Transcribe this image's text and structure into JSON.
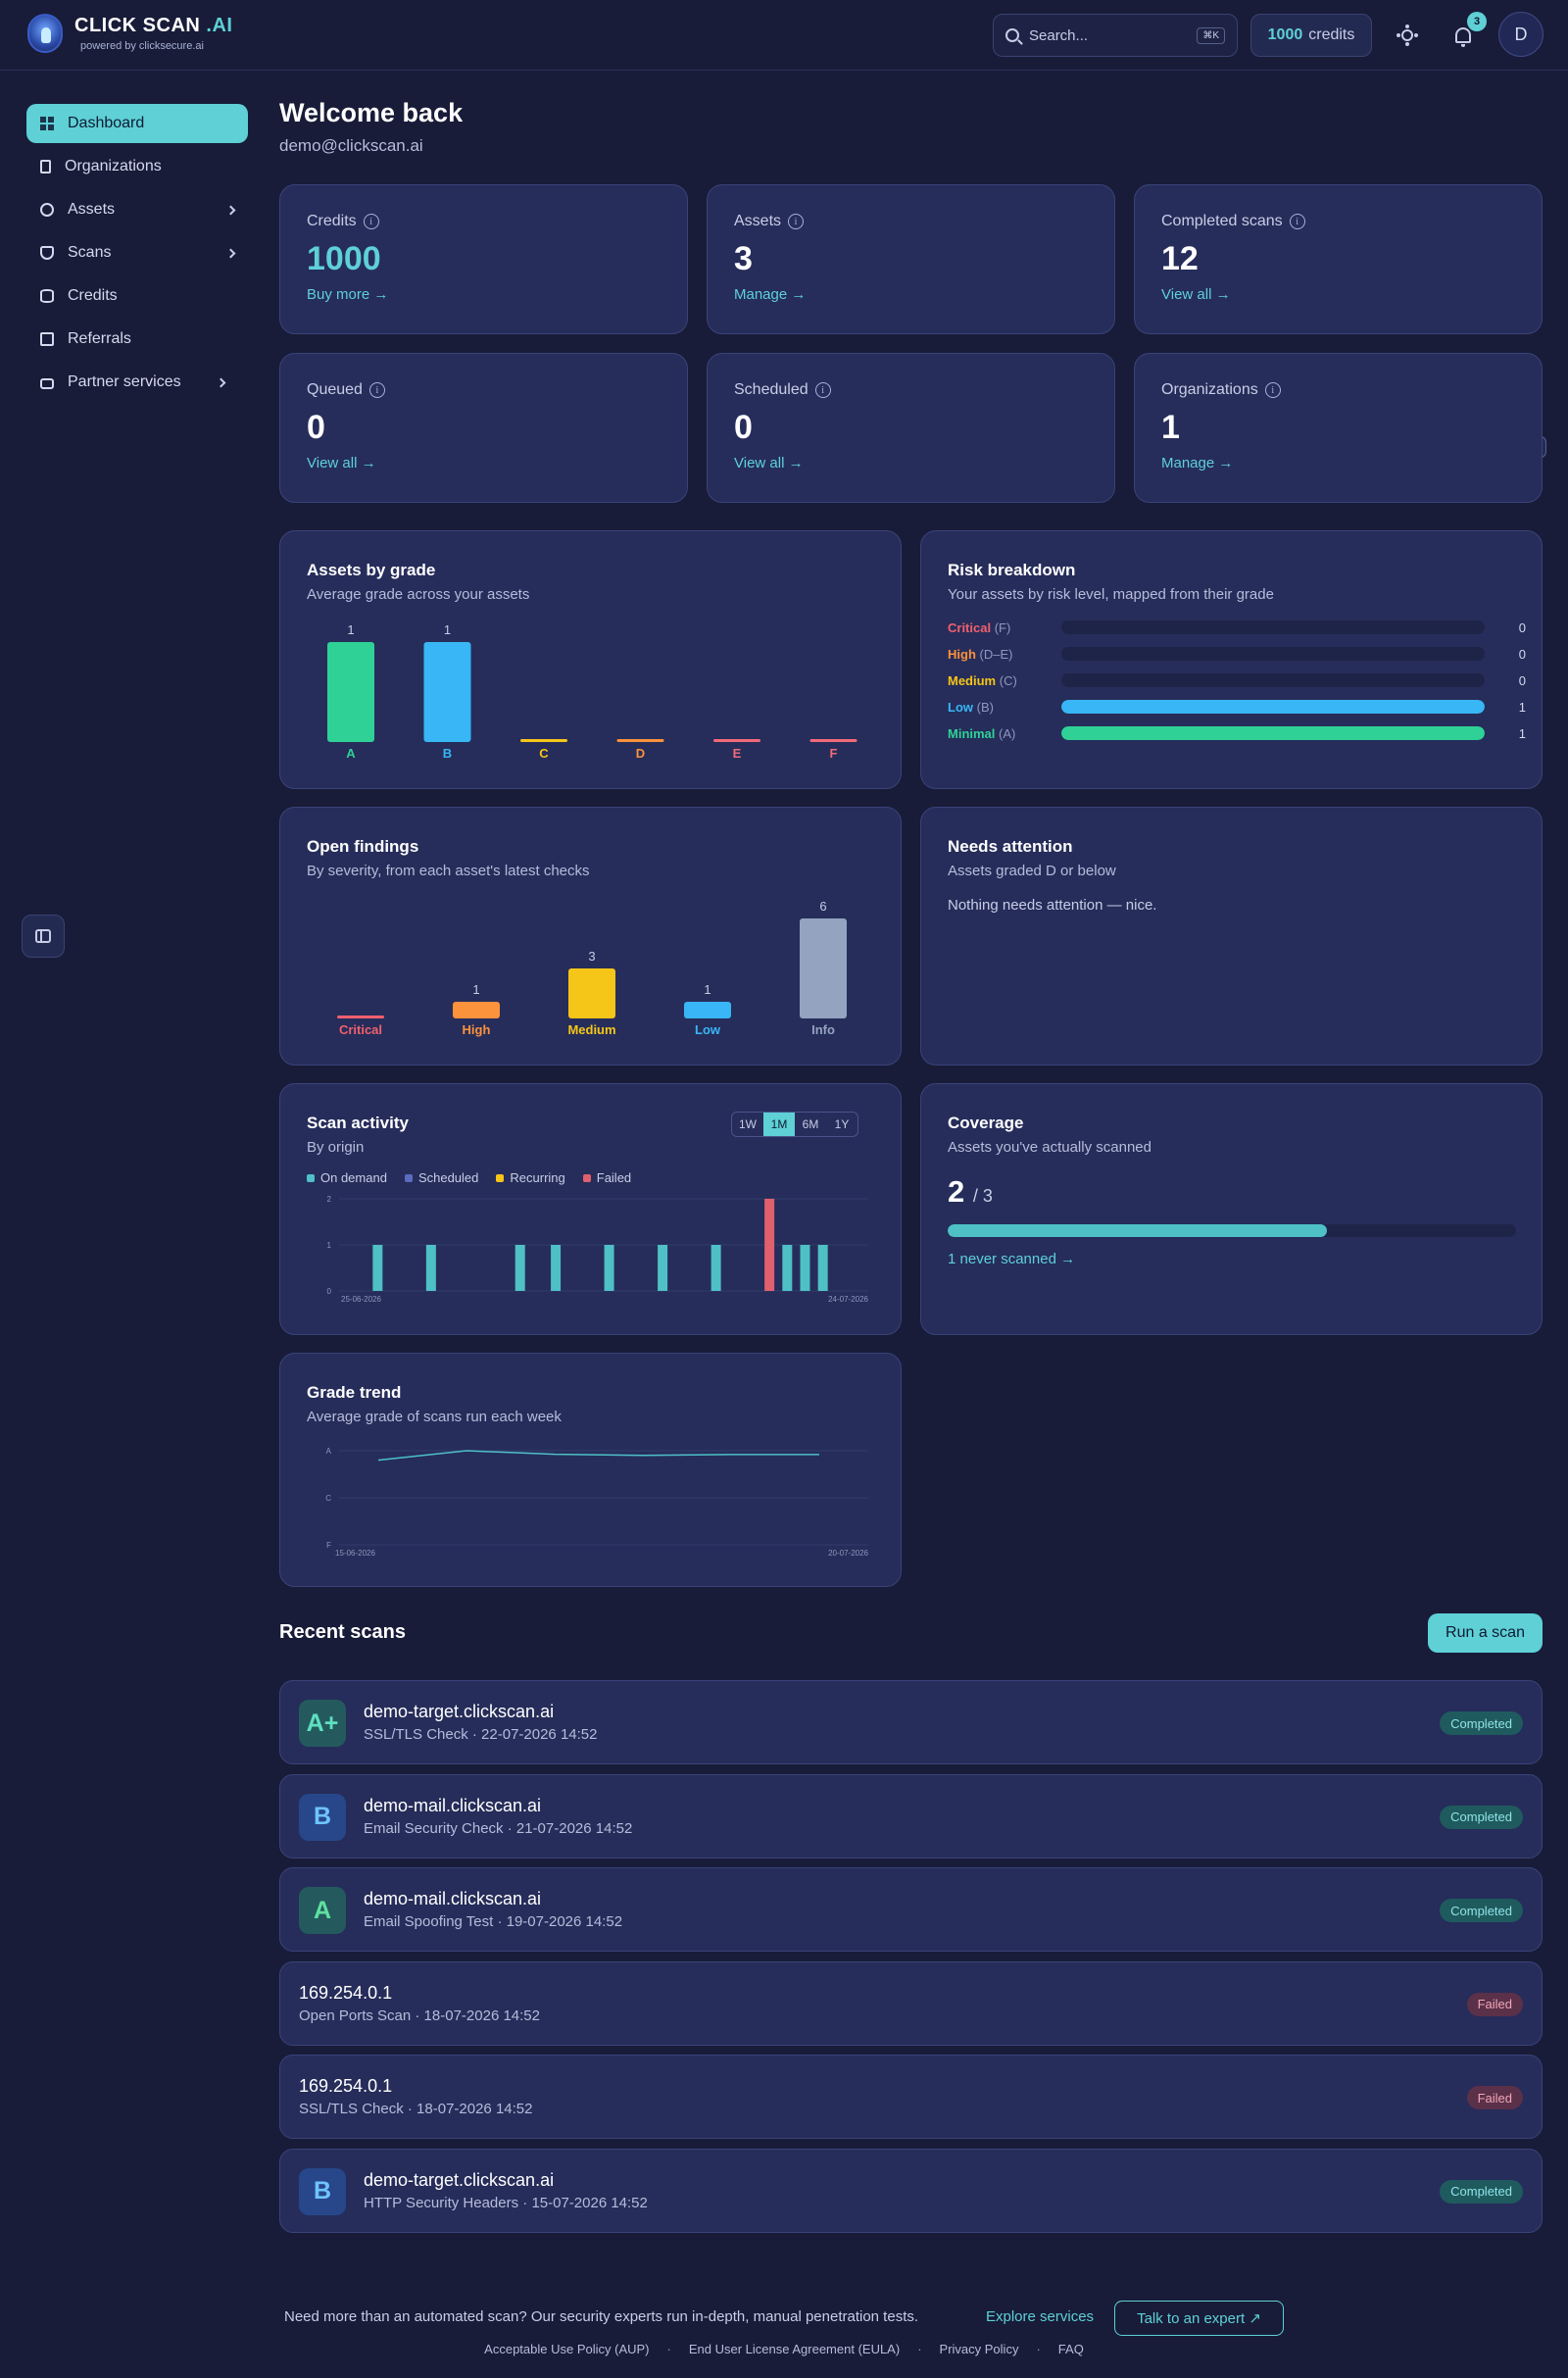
{
  "brand": {
    "name": "CLICK SCAN",
    "name_accent": ".AI",
    "tagline": "powered by clicksecure.ai"
  },
  "topbar": {
    "search_placeholder": "Search...",
    "search_shortcut": "⌘K",
    "credits_value": "1000",
    "credits_label": "credits",
    "notifications_count": "3",
    "avatar_initial": "D",
    "icons": [
      "search-icon",
      "sun-icon",
      "bell-icon"
    ]
  },
  "sidebar": {
    "items": [
      {
        "label": "Dashboard",
        "icon": "grid-icon",
        "active": true
      },
      {
        "label": "Organizations",
        "icon": "building-icon"
      },
      {
        "label": "Assets",
        "icon": "globe-icon",
        "has_children": true
      },
      {
        "label": "Scans",
        "icon": "shield-icon",
        "has_children": true
      },
      {
        "label": "Credits",
        "icon": "database-icon"
      },
      {
        "label": "Referrals",
        "icon": "gift-icon"
      },
      {
        "label": "Partner services",
        "icon": "briefcase-icon",
        "has_children": true
      }
    ]
  },
  "header": {
    "title": "Welcome back",
    "email": "demo@clickscan.ai"
  },
  "stats": [
    {
      "label": "Credits",
      "value": "1000",
      "link": "Buy more →"
    },
    {
      "label": "Assets",
      "value": "3",
      "link": "Manage →"
    },
    {
      "label": "Completed scans",
      "value": "12",
      "link": "View all →"
    },
    {
      "label": "Queued",
      "value": "0",
      "link": "View all →"
    },
    {
      "label": "Scheduled",
      "value": "0",
      "link": "View all →"
    },
    {
      "label": "Organizations",
      "value": "1",
      "link": "Manage →"
    }
  ],
  "assets_by_grade": {
    "title": "Assets by grade",
    "subtitle": "Average grade across your assets",
    "chart_data": {
      "type": "bar",
      "categories": [
        "A",
        "B",
        "C",
        "D",
        "E",
        "F"
      ],
      "values": [
        1,
        1,
        0,
        0,
        0,
        0
      ],
      "data_labels": [
        "1",
        "1",
        "",
        "",
        "",
        ""
      ],
      "colors": [
        "#2fd196",
        "#38b6f5",
        "#f5c518",
        "#fb923c",
        "#f06a7a",
        "#f06a7a"
      ]
    }
  },
  "risk_breakdown": {
    "title": "Risk breakdown",
    "subtitle": "Your assets by risk level, mapped from their grade",
    "max": 1,
    "rows": [
      {
        "name": "Critical",
        "grades": "(F)",
        "count": 0,
        "color": "#f0606e"
      },
      {
        "name": "High",
        "grades": "(D–E)",
        "count": 0,
        "color": "#fb923c"
      },
      {
        "name": "Medium",
        "grades": "(C)",
        "count": 0,
        "color": "#f5c518"
      },
      {
        "name": "Low",
        "grades": "(B)",
        "count": 1,
        "color": "#38b6f5"
      },
      {
        "name": "Minimal",
        "grades": "(A)",
        "count": 1,
        "color": "#2fd196"
      }
    ]
  },
  "open_findings": {
    "title": "Open findings",
    "subtitle": "By severity, from each asset's latest checks",
    "chart_data": {
      "type": "bar",
      "categories": [
        "Critical",
        "High",
        "Medium",
        "Low",
        "Info"
      ],
      "values": [
        0,
        1,
        3,
        1,
        6
      ],
      "data_labels": [
        "",
        "1",
        "3",
        "1",
        "6"
      ],
      "colors": [
        "#f0606e",
        "#fb923c",
        "#f5c518",
        "#38b6f5",
        "#94a3c0"
      ]
    }
  },
  "needs_attention": {
    "title": "Needs attention",
    "subtitle": "Assets graded D or below",
    "empty_text": "Nothing needs attention — nice."
  },
  "scan_activity": {
    "title": "Scan activity",
    "subtitle": "By origin",
    "ranges": [
      "1W",
      "1M",
      "6M",
      "1Y"
    ],
    "active_range": "1M",
    "legend": [
      {
        "name": "On demand",
        "color": "#4ec0c6"
      },
      {
        "name": "Scheduled",
        "color": "#5b6bc0"
      },
      {
        "name": "Recurring",
        "color": "#f5c518"
      },
      {
        "name": "Failed",
        "color": "#e0606e"
      }
    ],
    "chart_data": {
      "type": "bar",
      "x_start": "25-06-2026",
      "x_end": "24-07-2026",
      "yticks": [
        "2",
        "1",
        "0"
      ],
      "ylim": [
        0,
        2
      ],
      "x": [
        "27-06-2026",
        "30-06-2026",
        "05-07-2026",
        "07-07-2026",
        "10-07-2026",
        "13-07-2026",
        "16-07-2026",
        "19-07-2026",
        "20-07-2026",
        "21-07-2026",
        "22-07-2026"
      ],
      "series": [
        {
          "name": "On demand",
          "values": [
            1,
            1,
            1,
            1,
            1,
            1,
            1,
            0,
            1,
            1,
            1
          ]
        },
        {
          "name": "Failed",
          "values": [
            0,
            0,
            0,
            0,
            0,
            0,
            0,
            2,
            0,
            0,
            0
          ]
        }
      ]
    }
  },
  "coverage": {
    "title": "Coverage",
    "subtitle": "Assets you've actually scanned",
    "scanned": "2",
    "total": "/ 3",
    "fraction": 0.667,
    "link": "1 never scanned →"
  },
  "grade_trend": {
    "title": "Grade trend",
    "subtitle": "Average grade of scans run each week",
    "chart_data": {
      "type": "line",
      "x_start": "15-06-2026",
      "x_end": "20-07-2026",
      "yticks": [
        "A",
        "C",
        "F"
      ],
      "x": [
        "22-06-2026",
        "29-06-2026",
        "06-07-2026",
        "13-07-2026",
        "20-07-2026",
        "27-07-2026"
      ],
      "values": [
        3.6,
        4.0,
        3.85,
        3.8,
        3.84,
        3.84
      ],
      "ylim": [
        0,
        4
      ],
      "color": "#4ec0c6"
    }
  },
  "recent_scans": {
    "title": "Recent scans",
    "run_label": "Run a scan",
    "items": [
      {
        "grade": "A+",
        "target": "demo-target.clickscan.ai",
        "meta": "SSL/TLS Check · 22-07-2026 14:52",
        "status": "Completed"
      },
      {
        "grade": "B",
        "target": "demo-mail.clickscan.ai",
        "meta": "Email Security Check · 21-07-2026 14:52",
        "status": "Completed"
      },
      {
        "grade": "A",
        "target": "demo-mail.clickscan.ai",
        "meta": "Email Spoofing Test · 19-07-2026 14:52",
        "status": "Completed"
      },
      {
        "grade": "",
        "target": "169.254.0.1",
        "meta": "Open Ports Scan · 18-07-2026 14:52",
        "status": "Failed"
      },
      {
        "grade": "",
        "target": "169.254.0.1",
        "meta": "SSL/TLS Check · 18-07-2026 14:52",
        "status": "Failed"
      },
      {
        "grade": "B",
        "target": "demo-target.clickscan.ai",
        "meta": "HTTP Security Headers · 15-07-2026 14:52",
        "status": "Completed"
      }
    ]
  },
  "footer": {
    "cta": "Need more than an automated scan? Our security experts run in-depth, manual penetration tests.",
    "explore": "Explore services",
    "talk": "Talk to an expert ↗",
    "links": [
      "Acceptable Use Policy (AUP)",
      "End User License Agreement (EULA)",
      "Privacy Policy",
      "FAQ"
    ]
  }
}
